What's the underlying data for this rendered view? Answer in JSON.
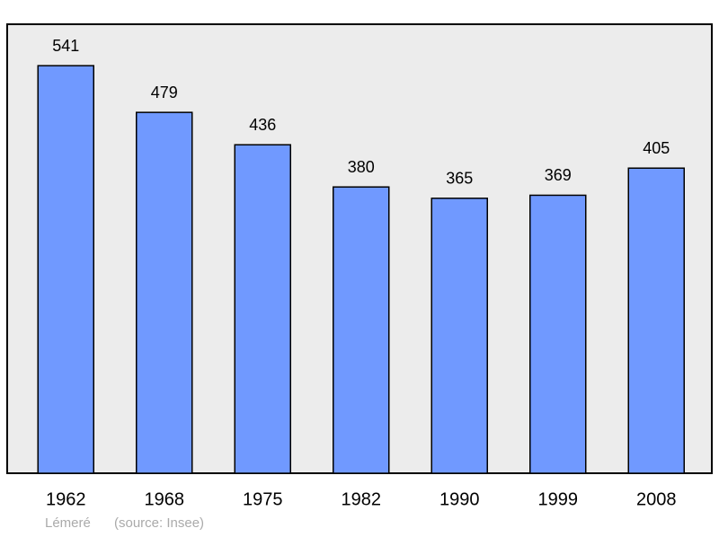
{
  "chart_data": {
    "type": "bar",
    "categories": [
      "1962",
      "1968",
      "1975",
      "1982",
      "1990",
      "1999",
      "2008"
    ],
    "values": [
      541,
      479,
      436,
      380,
      365,
      369,
      405
    ],
    "color": "#7099ff",
    "ylim": [
      0,
      596
    ],
    "place": "Lémeré",
    "source": "(source: Insee)"
  }
}
